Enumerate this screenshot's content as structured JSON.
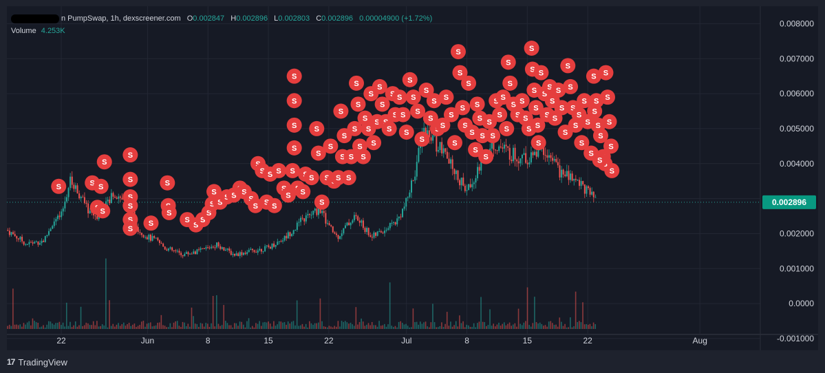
{
  "legend": {
    "title": "n PumpSwap, 1h, dexscreener.com",
    "open_label": "O",
    "open": "0.002847",
    "high_label": "H",
    "high": "0.002896",
    "low_label": "L",
    "low": "0.002803",
    "close_label": "C",
    "close": "0.002896",
    "change": "0.00004900 (+1.72%)",
    "volume_label": "Volume",
    "volume": "4.253K"
  },
  "footer": {
    "brand": "TradingView",
    "logo_icon": "tradingview-logo-icon"
  },
  "colors": {
    "background": "#161a25",
    "up": "#26a69a",
    "down": "#ef5350",
    "marker": "#e53e3e",
    "price_tag": "#089981",
    "text": "#d1d4dc"
  },
  "chart_data": {
    "type": "candlestick",
    "interval": "1h",
    "y_tick_labels": [
      "0.008000",
      "0.007000",
      "0.006000",
      "0.005000",
      "0.004000",
      "0.003000",
      "0.002000",
      "0.001000",
      "0.0000",
      "-0.001000"
    ],
    "ylim": [
      -0.0011,
      0.0085
    ],
    "x_tick_labels": [
      "22",
      "Jun",
      "8",
      "15",
      "22",
      "Jul",
      "8",
      "15",
      "22",
      "Aug"
    ],
    "x_tick_days": [
      0,
      10,
      17,
      24,
      31,
      40,
      47,
      54,
      61,
      74
    ],
    "x_start_label": "May 22",
    "xlim_days": [
      -6.3,
      81
    ],
    "last_price": "0.002896",
    "last_price_value": 0.002896,
    "price_path": [
      [
        -6.3,
        0.0021
      ],
      [
        -4,
        0.0017
      ],
      [
        -2,
        0.0018
      ],
      [
        -1,
        0.0023
      ],
      [
        0,
        0.0025
      ],
      [
        1,
        0.0035
      ],
      [
        2,
        0.0032
      ],
      [
        3,
        0.0027
      ],
      [
        4,
        0.0025
      ],
      [
        5,
        0.0027
      ],
      [
        6,
        0.0032
      ],
      [
        7,
        0.003
      ],
      [
        8,
        0.0027
      ],
      [
        9,
        0.0021
      ],
      [
        10,
        0.0019
      ],
      [
        11,
        0.0018
      ],
      [
        12,
        0.0016
      ],
      [
        14,
        0.0014
      ],
      [
        16,
        0.0015
      ],
      [
        18,
        0.0017
      ],
      [
        20,
        0.0014
      ],
      [
        22,
        0.0015
      ],
      [
        24,
        0.0016
      ],
      [
        26,
        0.0019
      ],
      [
        28,
        0.0024
      ],
      [
        30,
        0.0027
      ],
      [
        31,
        0.0022
      ],
      [
        32,
        0.0019
      ],
      [
        34,
        0.0025
      ],
      [
        36,
        0.0019
      ],
      [
        38,
        0.0022
      ],
      [
        39,
        0.0024
      ],
      [
        40,
        0.0029
      ],
      [
        41,
        0.0038
      ],
      [
        42,
        0.0049
      ],
      [
        43,
        0.0047
      ],
      [
        44,
        0.0044
      ],
      [
        45,
        0.004
      ],
      [
        46,
        0.0036
      ],
      [
        47,
        0.0032
      ],
      [
        48,
        0.0037
      ],
      [
        50,
        0.0046
      ],
      [
        52,
        0.0043
      ],
      [
        54,
        0.0041
      ],
      [
        56,
        0.0044
      ],
      [
        58,
        0.0037
      ],
      [
        60,
        0.0035
      ],
      [
        61,
        0.0032
      ],
      [
        62,
        0.0029
      ]
    ],
    "volume_profile": "low volume bars along the bottom with occasional spikes",
    "sell_marker_text": "S",
    "sell_markers": [
      [
        -0.3,
        0.00335
      ],
      [
        3.6,
        0.00345
      ],
      [
        4.6,
        0.00335
      ],
      [
        4.2,
        0.00275
      ],
      [
        4.8,
        0.00265
      ],
      [
        5.0,
        0.00405
      ],
      [
        8.0,
        0.00425
      ],
      [
        8.0,
        0.00355
      ],
      [
        8.0,
        0.00305
      ],
      [
        8.0,
        0.0028
      ],
      [
        8.0,
        0.0024
      ],
      [
        8.0,
        0.00215
      ],
      [
        10.4,
        0.0023
      ],
      [
        12.3,
        0.00345
      ],
      [
        12.4,
        0.0028
      ],
      [
        12.5,
        0.0026
      ],
      [
        14.6,
        0.0024
      ],
      [
        15.6,
        0.00225
      ],
      [
        16.4,
        0.0024
      ],
      [
        17.1,
        0.0026
      ],
      [
        17.5,
        0.00285
      ],
      [
        17.7,
        0.0032
      ],
      [
        18.4,
        0.0029
      ],
      [
        19.2,
        0.00305
      ],
      [
        20.0,
        0.0031
      ],
      [
        20.7,
        0.0033
      ],
      [
        21.2,
        0.0032
      ],
      [
        22.0,
        0.003
      ],
      [
        22.5,
        0.0028
      ],
      [
        22.8,
        0.004
      ],
      [
        23.3,
        0.0038
      ],
      [
        23.8,
        0.0029
      ],
      [
        24.2,
        0.0037
      ],
      [
        24.7,
        0.0028
      ],
      [
        25.2,
        0.0038
      ],
      [
        25.8,
        0.0033
      ],
      [
        26.3,
        0.0031
      ],
      [
        26.8,
        0.0038
      ],
      [
        27.0,
        0.0065
      ],
      [
        27.0,
        0.0058
      ],
      [
        27.0,
        0.0051
      ],
      [
        27.0,
        0.00445
      ],
      [
        27.4,
        0.0033
      ],
      [
        28.0,
        0.0032
      ],
      [
        28.3,
        0.0037
      ],
      [
        29.0,
        0.0036
      ],
      [
        29.6,
        0.005
      ],
      [
        29.8,
        0.0043
      ],
      [
        30.2,
        0.0029
      ],
      [
        30.8,
        0.0036
      ],
      [
        31.2,
        0.0045
      ],
      [
        31.6,
        0.0035
      ],
      [
        32.1,
        0.0036
      ],
      [
        32.4,
        0.0055
      ],
      [
        32.6,
        0.0042
      ],
      [
        32.8,
        0.0048
      ],
      [
        33.3,
        0.0036
      ],
      [
        33.6,
        0.0042
      ],
      [
        34.0,
        0.005
      ],
      [
        34.2,
        0.0063
      ],
      [
        34.4,
        0.0057
      ],
      [
        34.6,
        0.0045
      ],
      [
        35.0,
        0.0042
      ],
      [
        35.2,
        0.0053
      ],
      [
        35.6,
        0.005
      ],
      [
        35.9,
        0.006
      ],
      [
        36.2,
        0.0046
      ],
      [
        36.6,
        0.0052
      ],
      [
        36.9,
        0.0062
      ],
      [
        37.2,
        0.0057
      ],
      [
        37.6,
        0.0052
      ],
      [
        38.0,
        0.005
      ],
      [
        38.4,
        0.006
      ],
      [
        38.7,
        0.0054
      ],
      [
        39.2,
        0.0059
      ],
      [
        39.6,
        0.0054
      ],
      [
        40.0,
        0.0049
      ],
      [
        40.4,
        0.0064
      ],
      [
        40.8,
        0.0059
      ],
      [
        41.3,
        0.0055
      ],
      [
        41.8,
        0.0047
      ],
      [
        42.3,
        0.0061
      ],
      [
        42.8,
        0.0053
      ],
      [
        43.2,
        0.0058
      ],
      [
        43.6,
        0.005
      ],
      [
        44.2,
        0.0051
      ],
      [
        44.6,
        0.0059
      ],
      [
        45.2,
        0.0054
      ],
      [
        45.6,
        0.0046
      ],
      [
        46.0,
        0.0072
      ],
      [
        46.2,
        0.0066
      ],
      [
        46.5,
        0.0056
      ],
      [
        46.8,
        0.0051
      ],
      [
        47.2,
        0.0063
      ],
      [
        47.6,
        0.0049
      ],
      [
        48.0,
        0.0044
      ],
      [
        48.2,
        0.0057
      ],
      [
        48.5,
        0.0053
      ],
      [
        48.8,
        0.0048
      ],
      [
        49.2,
        0.0042
      ],
      [
        49.6,
        0.0052
      ],
      [
        50.0,
        0.0048
      ],
      [
        50.4,
        0.0058
      ],
      [
        50.8,
        0.0054
      ],
      [
        51.2,
        0.0059
      ],
      [
        51.6,
        0.005
      ],
      [
        51.8,
        0.0069
      ],
      [
        52.0,
        0.0063
      ],
      [
        52.4,
        0.0057
      ],
      [
        52.9,
        0.0054
      ],
      [
        53.4,
        0.0058
      ],
      [
        53.8,
        0.0053
      ],
      [
        54.2,
        0.005
      ],
      [
        54.5,
        0.0073
      ],
      [
        54.6,
        0.0067
      ],
      [
        54.8,
        0.0061
      ],
      [
        55.0,
        0.0056
      ],
      [
        55.2,
        0.0051
      ],
      [
        55.3,
        0.0046
      ],
      [
        55.6,
        0.0066
      ],
      [
        56.0,
        0.006
      ],
      [
        56.3,
        0.0054
      ],
      [
        56.6,
        0.0062
      ],
      [
        56.9,
        0.0058
      ],
      [
        57.2,
        0.0053
      ],
      [
        57.6,
        0.0061
      ],
      [
        58.0,
        0.0056
      ],
      [
        58.4,
        0.0049
      ],
      [
        58.7,
        0.0068
      ],
      [
        59.0,
        0.0062
      ],
      [
        59.3,
        0.0056
      ],
      [
        59.6,
        0.0051
      ],
      [
        60.0,
        0.0054
      ],
      [
        60.3,
        0.0046
      ],
      [
        60.6,
        0.0058
      ],
      [
        61.0,
        0.0052
      ],
      [
        61.4,
        0.0043
      ],
      [
        61.7,
        0.0065
      ],
      [
        62.0,
        0.0058
      ],
      [
        62.2,
        0.0051
      ],
      [
        62.5,
        0.0048
      ],
      [
        62.8,
        0.0042
      ],
      [
        63.1,
        0.0066
      ],
      [
        63.3,
        0.0059
      ],
      [
        63.5,
        0.0052
      ],
      [
        63.7,
        0.0045
      ],
      [
        63.8,
        0.0038
      ],
      [
        63.0,
        0.004
      ],
      [
        62.4,
        0.0041
      ],
      [
        61.8,
        0.0055
      ]
    ]
  }
}
